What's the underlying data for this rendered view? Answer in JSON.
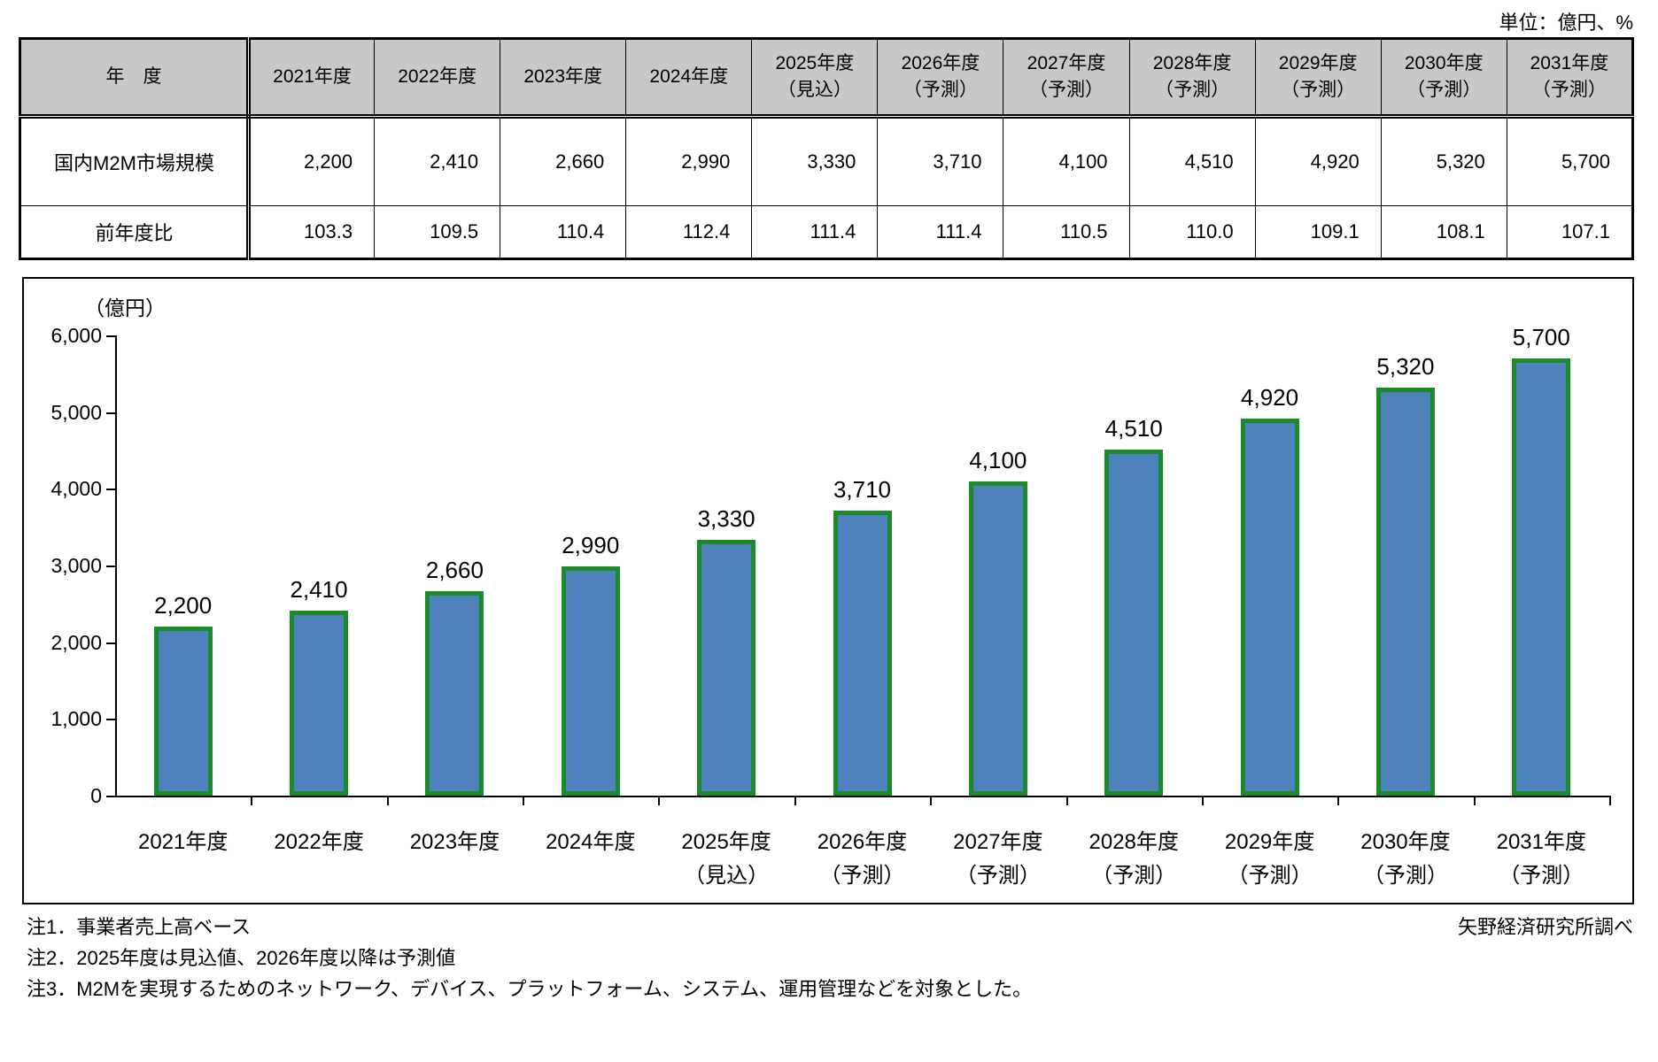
{
  "unit_note": "単位：億円、%",
  "table": {
    "corner_label": "年　度",
    "columns": [
      {
        "year": "2021年度",
        "qualifier": ""
      },
      {
        "year": "2022年度",
        "qualifier": ""
      },
      {
        "year": "2023年度",
        "qualifier": ""
      },
      {
        "year": "2024年度",
        "qualifier": ""
      },
      {
        "year": "2025年度",
        "qualifier": "（見込）"
      },
      {
        "year": "2026年度",
        "qualifier": "（予測）"
      },
      {
        "year": "2027年度",
        "qualifier": "（予測）"
      },
      {
        "year": "2028年度",
        "qualifier": "（予測）"
      },
      {
        "year": "2029年度",
        "qualifier": "（予測）"
      },
      {
        "year": "2030年度",
        "qualifier": "（予測）"
      },
      {
        "year": "2031年度",
        "qualifier": "（予測）"
      }
    ],
    "rows": [
      {
        "label": "国内M2M市場規模",
        "values": [
          "2,200",
          "2,410",
          "2,660",
          "2,990",
          "3,330",
          "3,710",
          "4,100",
          "4,510",
          "4,920",
          "5,320",
          "5,700"
        ]
      },
      {
        "label": "前年度比",
        "values": [
          "103.3",
          "109.5",
          "110.4",
          "112.4",
          "111.4",
          "111.4",
          "110.5",
          "110.0",
          "109.1",
          "108.1",
          "107.1"
        ]
      }
    ]
  },
  "chart_data": {
    "type": "bar",
    "title": "",
    "ylabel": "（億円）",
    "xlabel": "",
    "categories": [
      "2021年度",
      "2022年度",
      "2023年度",
      "2024年度",
      "2025年度",
      "2026年度",
      "2027年度",
      "2028年度",
      "2029年度",
      "2030年度",
      "2031年度"
    ],
    "category_subs": [
      "",
      "",
      "",
      "",
      "（見込）",
      "（予測）",
      "（予測）",
      "（予測）",
      "（予測）",
      "（予測）",
      "（予測）"
    ],
    "values": [
      2200,
      2410,
      2660,
      2990,
      3330,
      3710,
      4100,
      4510,
      4920,
      5320,
      5700
    ],
    "value_labels": [
      "2,200",
      "2,410",
      "2,660",
      "2,990",
      "3,330",
      "3,710",
      "4,100",
      "4,510",
      "4,920",
      "5,320",
      "5,700"
    ],
    "ylim": [
      0,
      6000
    ],
    "ytick_interval": 1000,
    "ytick_labels": [
      "0",
      "1,000",
      "2,000",
      "3,000",
      "4,000",
      "5,000",
      "6,000"
    ],
    "grid": "off",
    "legend": "none",
    "bar_fill_color": "#4f81bd",
    "bar_border_color": "#1b8a2c"
  },
  "notes": [
    "注1．事業者売上高ベース",
    "注2．2025年度は見込値、2026年度以降は予測値",
    "注3．M2Mを実現するためのネットワーク、デバイス、プラットフォーム、システム、運用管理などを対象とした。"
  ],
  "source": "矢野経済研究所調べ"
}
